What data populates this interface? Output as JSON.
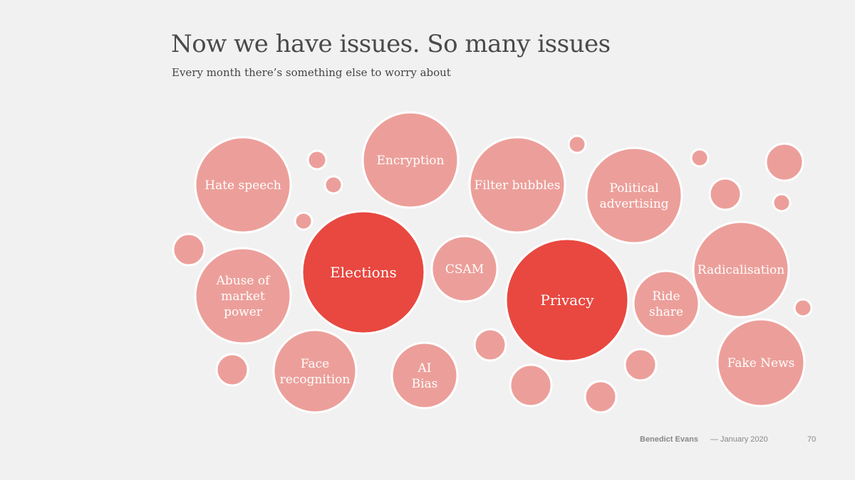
{
  "slide": {
    "title": "Now we have issues. So many issues",
    "subtitle": "Every month there’s something else to worry about"
  },
  "colors": {
    "background": "#f1f1f1",
    "bubble_light": "#ec9f9a",
    "bubble_highlight": "#e84840",
    "bubble_border": "#ffffff",
    "label": "#ffffff"
  },
  "bubbles": [
    {
      "id": "hate-speech",
      "lines": [
        "Hate speech"
      ],
      "highlight": false
    },
    {
      "id": "encryption",
      "lines": [
        "Encryption"
      ],
      "highlight": false
    },
    {
      "id": "filter-bubbles",
      "lines": [
        "Filter bubbles"
      ],
      "highlight": false
    },
    {
      "id": "political-advertising",
      "lines": [
        "Political",
        "advertising"
      ],
      "highlight": false
    },
    {
      "id": "elections",
      "lines": [
        "Elections"
      ],
      "highlight": true
    },
    {
      "id": "csam",
      "lines": [
        "CSAM"
      ],
      "highlight": false
    },
    {
      "id": "privacy",
      "lines": [
        "Privacy"
      ],
      "highlight": true
    },
    {
      "id": "abuse-of-market-power",
      "lines": [
        "Abuse of",
        "market",
        "power"
      ],
      "highlight": false
    },
    {
      "id": "radicalisation",
      "lines": [
        "Radicalisation"
      ],
      "highlight": false
    },
    {
      "id": "ride-share",
      "lines": [
        "Ride",
        "share"
      ],
      "highlight": false
    },
    {
      "id": "face-recognition",
      "lines": [
        "Face",
        "recognition"
      ],
      "highlight": false
    },
    {
      "id": "ai-bias",
      "lines": [
        "AI",
        "Bias"
      ],
      "highlight": false
    },
    {
      "id": "fake-news",
      "lines": [
        "Fake News"
      ],
      "highlight": false
    }
  ],
  "footer": {
    "author": "Benedict Evans",
    "date": "— January 2020",
    "page": "70"
  }
}
